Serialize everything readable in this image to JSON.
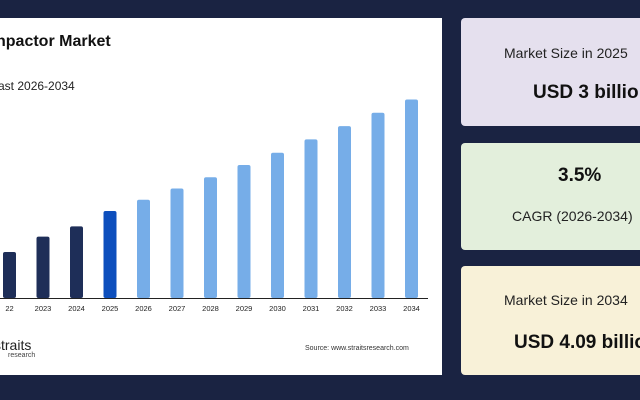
{
  "chart_panel": {
    "title": "npactor Market",
    "subtitle": "ast 2026-2034",
    "source": "Source: www.straitsresearch.com",
    "logo": {
      "name": "straits",
      "sub": "research"
    }
  },
  "chart_data": {
    "type": "bar",
    "categories": [
      "22",
      "2023",
      "2024",
      "2025",
      "2026",
      "2027",
      "2028",
      "2029",
      "2030",
      "2031",
      "2032",
      "2033",
      "2034"
    ],
    "values": [
      2.6,
      2.75,
      2.85,
      3.0,
      3.11,
      3.22,
      3.33,
      3.45,
      3.57,
      3.7,
      3.83,
      3.96,
      4.09
    ],
    "ylim": [
      2.15,
      4.3
    ],
    "title": "npactor Market",
    "subtitle": "ast 2026-2034",
    "xlabel": "",
    "ylabel": "",
    "highlight_category": "2025",
    "colors": {
      "historical": "#1e2e58",
      "highlight": "#0d4fbd",
      "forecast": "#76ade8"
    }
  },
  "stats": {
    "market_2025_label": "Market Size in 2025",
    "market_2025_value": "USD 3 billio",
    "cagr_value": "3.5%",
    "cagr_label": "CAGR (2026-2034)",
    "market_2034_label": "Market Size in 2034",
    "market_2034_value": "USD 4.09 billio"
  }
}
